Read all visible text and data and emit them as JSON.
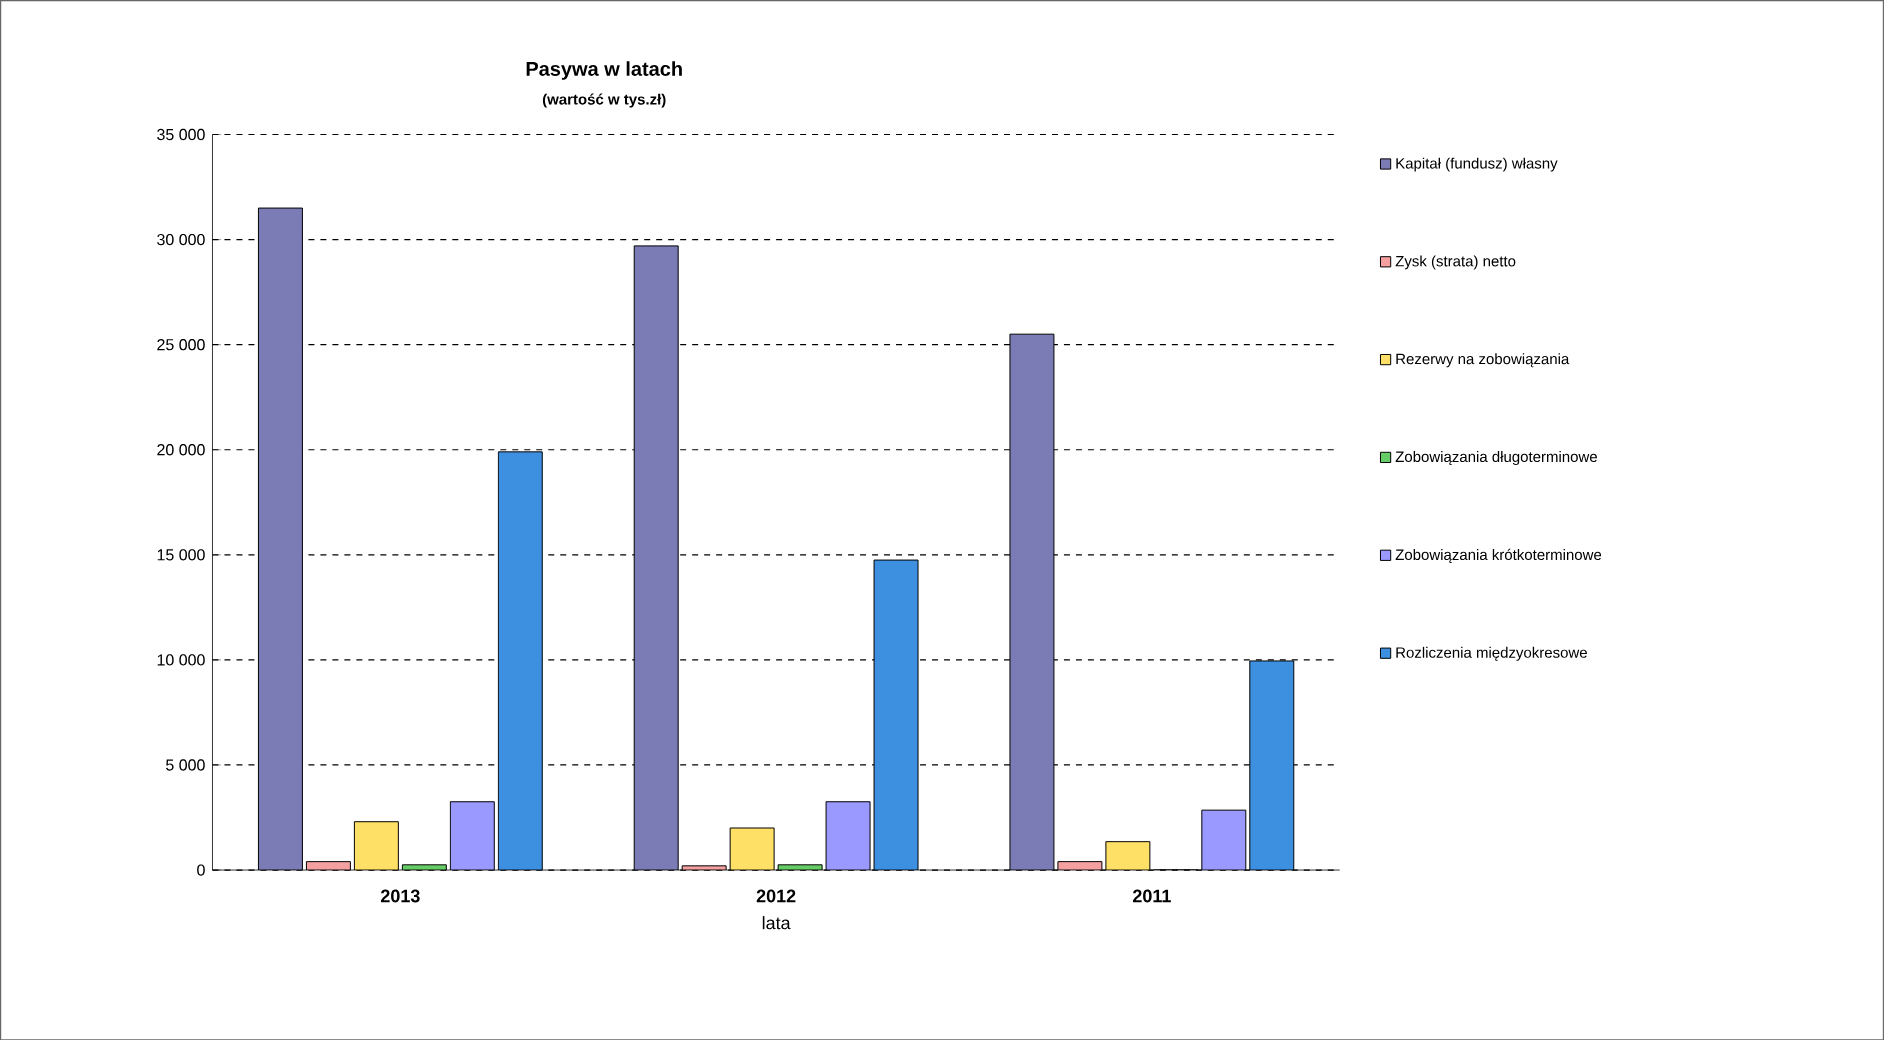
{
  "chart_data": {
    "type": "bar",
    "title": "Pasywa w latach",
    "subtitle": "(wartość w tys.zł)",
    "xlabel": "lata",
    "categories": [
      "2013",
      "2012",
      "2011"
    ],
    "series": [
      {
        "name": "Kapitał (fundusz) własny",
        "color": "#7b7bb5",
        "values": [
          31500,
          29700,
          25500
        ]
      },
      {
        "name": "Zysk (strata) netto",
        "color": "#f4a0a0",
        "values": [
          400,
          200,
          400
        ]
      },
      {
        "name": "Rezerwy na zobowiązania",
        "color": "#ffe066",
        "values": [
          2300,
          2000,
          1350
        ]
      },
      {
        "name": "Zobowiązania długoterminowe",
        "color": "#66cc66",
        "values": [
          250,
          250,
          0
        ]
      },
      {
        "name": "Zobowiązania krótkoterminowe",
        "color": "#9999ff",
        "values": [
          3250,
          3250,
          2850
        ]
      },
      {
        "name": "Rozliczenia międzyokresowe",
        "color": "#3d8fe0",
        "values": [
          19900,
          14750,
          9950
        ]
      }
    ],
    "ylim": [
      0,
      35000
    ],
    "yticks": [
      {
        "value": 0,
        "label": "0"
      },
      {
        "value": 5000,
        "label": "5 000"
      },
      {
        "value": 10000,
        "label": "10 000"
      },
      {
        "value": 15000,
        "label": "15 000"
      },
      {
        "value": 20000,
        "label": "20 000"
      },
      {
        "value": 25000,
        "label": "25 000"
      },
      {
        "value": 30000,
        "label": "30 000"
      },
      {
        "value": 35000,
        "label": "35 000"
      }
    ],
    "grid": "y",
    "legend": "right"
  }
}
